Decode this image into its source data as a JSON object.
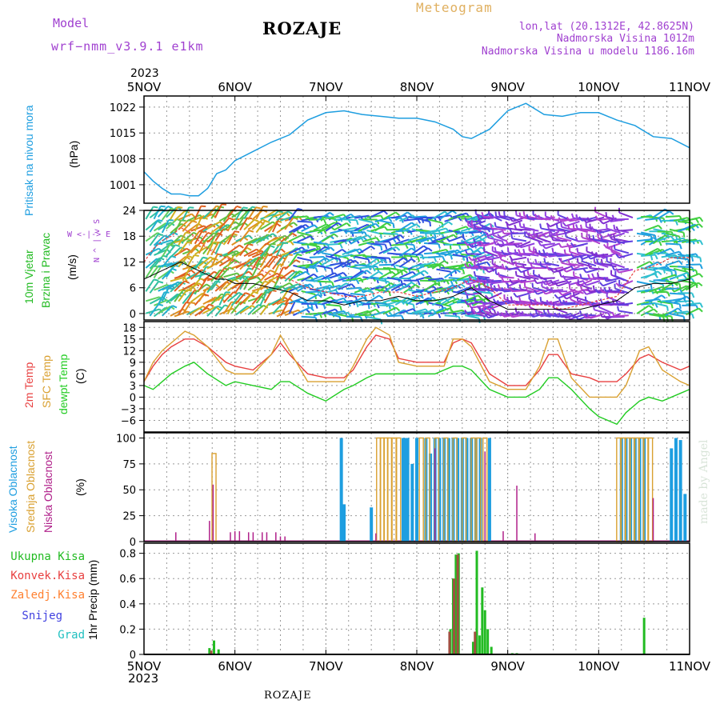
{
  "header": {
    "model_label": "Model",
    "model_name": "wrf−nmm_v3.9.1  e1km",
    "station": "ROZAJE",
    "meteogram": "Meteogram",
    "lonlat": "lon,lat (20.1312E, 42.8625N)",
    "altitude": "Nadmorska Visina 1012m",
    "model_altitude": "Nadmorska Visina u modelu 1186.16m",
    "watermark": "made by Angel",
    "footer_station": "ROZAJE"
  },
  "colors": {
    "pressure": "#1e9ee0",
    "wind_label": "#22bb22",
    "temp2m": "#e84040",
    "sfc_temp": "#d9a030",
    "dewpt": "#22cc22",
    "high_cloud": "#1e9ee0",
    "mid_cloud": "#d9a030",
    "low_cloud": "#b0208a",
    "precip": "#22bb22",
    "convective": "#e84040",
    "frozen": "#ff8030",
    "snow": "#4040e0",
    "hail": "#20c0c0",
    "header_purple": "#a040d0",
    "meteogram_orange": "#e0b060"
  },
  "time_axis": {
    "top_year": "2023",
    "bottom_year": "2023",
    "labels": [
      "5NOV",
      "6NOV",
      "7NOV",
      "8NOV",
      "9NOV",
      "10NOV",
      "11NOV"
    ]
  },
  "chart_data": [
    {
      "type": "line",
      "panel": "pressure",
      "ylabel_1": "Pritisak na nivou mora",
      "ylabel_2": "(hPa)",
      "yticks": [
        "1001",
        "1008",
        "1015",
        "1022"
      ],
      "ylim": [
        996,
        1025
      ],
      "x": [
        5.0,
        5.1,
        5.2,
        5.3,
        5.4,
        5.5,
        5.6,
        5.7,
        5.8,
        5.9,
        6.0,
        6.2,
        6.4,
        6.6,
        6.8,
        7.0,
        7.2,
        7.4,
        7.6,
        7.8,
        8.0,
        8.2,
        8.4,
        8.5,
        8.6,
        8.8,
        9.0,
        9.2,
        9.4,
        9.6,
        9.8,
        10.0,
        10.2,
        10.4,
        10.6,
        10.8,
        11.0
      ],
      "series": [
        {
          "values": [
            1004.5,
            1002.0,
            1000.0,
            998.5,
            998.5,
            998.0,
            998.0,
            1000.0,
            1004.0,
            1005.0,
            1007.5,
            1010.0,
            1012.5,
            1014.5,
            1018.5,
            1020.5,
            1021.0,
            1020.0,
            1019.5,
            1019.0,
            1019.0,
            1018.0,
            1016.0,
            1014.0,
            1013.5,
            1016.0,
            1021.0,
            1023.0,
            1020.0,
            1019.5,
            1020.5,
            1020.5,
            1018.5,
            1017.0,
            1014.0,
            1013.5,
            1011.0
          ]
        }
      ]
    },
    {
      "type": "line",
      "panel": "wind",
      "ylabel_1": "10m Vjetar",
      "ylabel_2": "Brzina i Pravac",
      "ylabel_3": "(m/s)",
      "compass": "W  <-|->  E",
      "compass_ns": "N  ^  |  v  S",
      "yticks": [
        "0",
        "6",
        "12",
        "18",
        "24"
      ],
      "ylim": [
        -1.5,
        24
      ],
      "x": [
        5.0,
        5.1,
        5.2,
        5.3,
        5.4,
        5.5,
        5.6,
        5.7,
        5.8,
        5.9,
        6.0,
        6.2,
        6.4,
        6.6,
        6.8,
        7.0,
        7.2,
        7.4,
        7.6,
        7.8,
        8.0,
        8.2,
        8.4,
        8.6,
        8.8,
        9.0,
        9.2,
        9.4,
        9.6,
        9.8,
        10.0,
        10.2,
        10.4,
        10.6,
        10.8,
        11.0
      ],
      "series": [
        {
          "values": [
            12,
            15,
            17,
            18,
            20,
            19,
            17,
            15,
            14,
            13,
            12,
            11,
            9,
            8,
            6,
            5,
            4,
            4,
            5,
            5,
            4,
            5,
            6,
            8,
            6,
            2,
            2,
            2,
            1,
            2,
            3,
            4,
            10,
            11,
            13,
            13
          ]
        },
        {
          "values": [
            8,
            9,
            10,
            11,
            12,
            11,
            10,
            9,
            8,
            8,
            7,
            7,
            6,
            5,
            3,
            3,
            2,
            3,
            3,
            4,
            3,
            3,
            4,
            6,
            3,
            1,
            1,
            1,
            1,
            1,
            2,
            3,
            6,
            7,
            7,
            8
          ]
        }
      ]
    },
    {
      "type": "line",
      "panel": "temperature",
      "ylabel_1": "2m Temp",
      "ylabel_2": "SFC Temp",
      "ylabel_3": "dewpt Temp",
      "ylabel_4": "(C)",
      "yticks": [
        "−6",
        "−3",
        "0",
        "3",
        "6",
        "9",
        "12",
        "15",
        "18"
      ],
      "ylim": [
        -9,
        19.5
      ],
      "x": [
        5.0,
        5.1,
        5.2,
        5.3,
        5.45,
        5.55,
        5.7,
        5.9,
        6.0,
        6.2,
        6.4,
        6.5,
        6.6,
        6.8,
        7.0,
        7.2,
        7.3,
        7.45,
        7.55,
        7.7,
        7.8,
        8.0,
        8.2,
        8.3,
        8.4,
        8.5,
        8.6,
        8.8,
        9.0,
        9.1,
        9.2,
        9.35,
        9.45,
        9.55,
        9.7,
        9.9,
        10.0,
        10.2,
        10.3,
        10.45,
        10.55,
        10.7,
        10.9,
        11.0
      ],
      "series": [
        {
          "name": "2m",
          "values": [
            4,
            8,
            11,
            13,
            15,
            15,
            13,
            9,
            8,
            7,
            11,
            14,
            11,
            6,
            5,
            5,
            7,
            13,
            16,
            15,
            10,
            9,
            9,
            9,
            14,
            15,
            14,
            6,
            3,
            3,
            3,
            7,
            11,
            11,
            6,
            5,
            4,
            4,
            6,
            10,
            11,
            9,
            7,
            8
          ]
        },
        {
          "name": "sfc",
          "values": [
            4,
            9,
            12,
            14,
            17,
            16,
            13,
            7,
            6,
            6,
            11,
            16,
            12,
            4,
            4,
            4,
            8,
            15,
            18,
            16,
            9,
            8,
            8,
            8,
            15,
            15,
            13,
            4,
            2,
            2,
            2,
            8,
            15,
            15,
            5,
            0,
            0,
            0,
            3,
            12,
            13,
            7,
            4,
            3
          ]
        },
        {
          "name": "dewpt",
          "values": [
            3,
            2,
            4,
            6,
            8,
            9,
            6,
            3,
            4,
            3,
            2,
            4,
            4,
            1,
            -1,
            2,
            3,
            5,
            6,
            6,
            6,
            6,
            6,
            7,
            8,
            8,
            7,
            2,
            0,
            0,
            0,
            2,
            5,
            5,
            2,
            -3,
            -5,
            -7,
            -4,
            -1,
            0,
            -1,
            1,
            2
          ]
        }
      ]
    },
    {
      "type": "bar",
      "panel": "cloud",
      "ylabel_1": "Visoka Oblacnost",
      "ylabel_2": "Srednja Oblacnost",
      "ylabel_3": "Niska Oblacnost",
      "ylabel_4": "(%)",
      "yticks": [
        "0",
        "25",
        "50",
        "75",
        "100"
      ],
      "ylim": [
        0,
        105
      ],
      "series": [
        {
          "name": "high",
          "x": [
            7.17,
            7.2,
            7.5,
            7.85,
            7.88,
            7.9,
            7.95,
            8.0,
            8.1,
            8.15,
            8.2,
            8.25,
            8.3,
            8.35,
            8.4,
            8.45,
            8.5,
            8.55,
            8.6,
            8.65,
            8.7,
            8.8,
            10.25,
            10.3,
            10.35,
            10.4,
            10.45,
            10.5,
            10.8,
            10.85,
            10.9,
            10.95
          ],
          "values": [
            100,
            36,
            33,
            100,
            100,
            100,
            75,
            100,
            100,
            85,
            100,
            100,
            100,
            100,
            100,
            100,
            100,
            100,
            100,
            100,
            100,
            100,
            100,
            100,
            100,
            100,
            100,
            100,
            90,
            100,
            98,
            46
          ]
        },
        {
          "name": "mid",
          "x": [
            5.77,
            7.58,
            7.62,
            7.66,
            7.7,
            7.75,
            7.8,
            8.05,
            8.12,
            8.22,
            8.32,
            8.42,
            8.52,
            8.62,
            8.68,
            8.75,
            10.22,
            10.27,
            10.32,
            10.37,
            10.42,
            10.47,
            10.52,
            10.57
          ],
          "values": [
            85,
            100,
            100,
            100,
            100,
            100,
            100,
            100,
            100,
            100,
            100,
            100,
            100,
            100,
            100,
            100,
            100,
            100,
            100,
            100,
            100,
            100,
            100,
            100
          ]
        },
        {
          "name": "low",
          "x": [
            5.35,
            5.72,
            5.76,
            5.95,
            6.0,
            6.05,
            6.15,
            6.2,
            6.3,
            6.35,
            6.45,
            6.5,
            6.55,
            7.55,
            8.2,
            8.75,
            8.95,
            9.1,
            9.3,
            10.6
          ],
          "values": [
            9,
            20,
            55,
            9,
            10,
            10,
            9,
            9,
            9,
            9,
            9,
            5,
            5,
            8,
            90,
            87,
            10,
            54,
            8,
            42
          ]
        }
      ]
    },
    {
      "type": "bar",
      "panel": "precip",
      "legend": [
        "Ukupna Kisa",
        "Konvek.Kisa",
        "Zaledj.Kisa",
        "Snijeg",
        "Grad"
      ],
      "ylabel_1": "1hr Precip (mm)",
      "yticks": [
        "0",
        "0.2",
        "0.4",
        "0.6",
        "0.8"
      ],
      "ylim": [
        0,
        0.88
      ],
      "series": [
        {
          "name": "total",
          "x": [
            5.72,
            5.77,
            5.82,
            8.37,
            8.4,
            8.43,
            8.46,
            8.62,
            8.66,
            8.69,
            8.72,
            8.75,
            8.78,
            8.82,
            9.05,
            9.1,
            10.5
          ],
          "values": [
            0.05,
            0.11,
            0.04,
            0.2,
            0.6,
            0.79,
            0.8,
            0.1,
            0.82,
            0.15,
            0.53,
            0.35,
            0.2,
            0.06,
            0.01,
            0.01,
            0.29
          ]
        },
        {
          "name": "convective",
          "x": [
            5.74,
            8.36,
            8.41,
            8.45,
            8.64
          ],
          "values": [
            0.03,
            0.18,
            0.6,
            0.79,
            0.18
          ]
        }
      ]
    }
  ]
}
